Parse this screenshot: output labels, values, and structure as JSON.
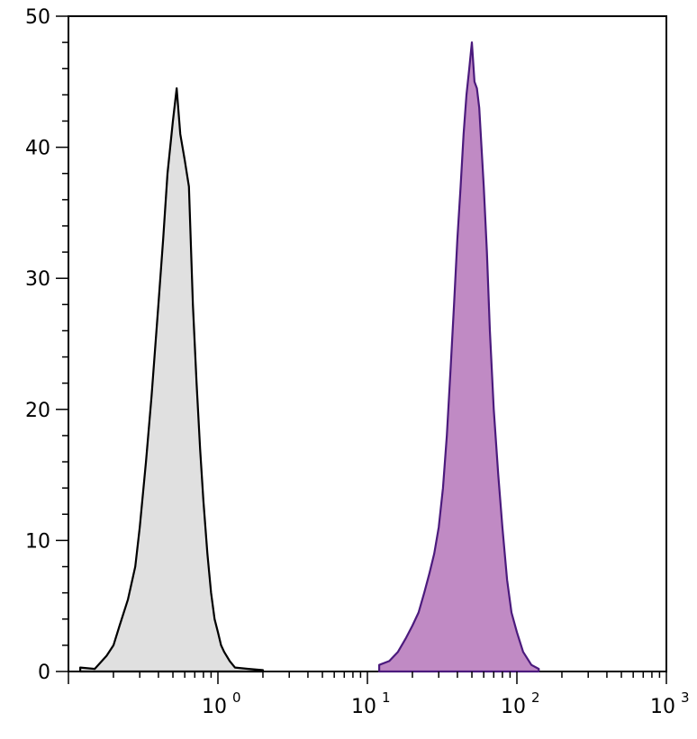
{
  "chart_data": {
    "type": "area",
    "title": "",
    "xlabel": "",
    "ylabel": "",
    "x_scale": "log",
    "xlim": [
      0.1,
      1000
    ],
    "ylim": [
      0,
      50
    ],
    "grid": false,
    "legend": "none",
    "y_ticks": [
      0,
      10,
      20,
      30,
      40,
      50
    ],
    "y_tick_labels": [
      "0",
      "10",
      "20",
      "30",
      "40",
      "50"
    ],
    "x_ticks": [
      1,
      10,
      100,
      1000
    ],
    "x_tick_labels": [
      {
        "base": "10",
        "exp": "0"
      },
      {
        "base": "10",
        "exp": "1"
      },
      {
        "base": "10",
        "exp": "2"
      },
      {
        "base": "10",
        "exp": "3"
      }
    ],
    "series": [
      {
        "fill": "#e0e0e0",
        "stroke": "#000000",
        "x": [
          0.12,
          0.15,
          0.18,
          0.2,
          0.22,
          0.25,
          0.28,
          0.3,
          0.33,
          0.36,
          0.4,
          0.43,
          0.46,
          0.5,
          0.53,
          0.56,
          0.6,
          0.64,
          0.68,
          0.72,
          0.76,
          0.8,
          0.85,
          0.9,
          0.95,
          1.0,
          1.05,
          1.1,
          1.2,
          1.3,
          1.6,
          2.0
        ],
        "values": [
          0.3,
          0.2,
          1.2,
          2.0,
          3.5,
          5.5,
          8.0,
          11.0,
          16.0,
          21.0,
          28.0,
          33.0,
          38.0,
          42.0,
          44.5,
          41.0,
          39.0,
          37.0,
          28.0,
          22.0,
          17.0,
          13.0,
          9.0,
          6.0,
          4.0,
          3.0,
          2.0,
          1.5,
          0.8,
          0.3,
          0.2,
          0.1
        ]
      },
      {
        "fill": "#c08ac4",
        "stroke": "#4b1a7d",
        "x": [
          12,
          14,
          16,
          18,
          20,
          22,
          24,
          26,
          28,
          30,
          32,
          34,
          36,
          38,
          40,
          42,
          44,
          46,
          48,
          50,
          52,
          54,
          56,
          58,
          60,
          63,
          66,
          70,
          75,
          80,
          86,
          92,
          100,
          110,
          125,
          140
        ],
        "values": [
          0.5,
          0.8,
          1.5,
          2.5,
          3.5,
          4.5,
          6.0,
          7.5,
          9.0,
          11.0,
          14.0,
          18.0,
          23.0,
          28.0,
          33.0,
          37.0,
          41.0,
          44.0,
          46.0,
          48.0,
          45.0,
          44.5,
          43.0,
          40.0,
          37.0,
          32.0,
          26.0,
          20.0,
          15.0,
          11.0,
          7.0,
          4.5,
          3.0,
          1.5,
          0.5,
          0.2
        ]
      }
    ]
  }
}
